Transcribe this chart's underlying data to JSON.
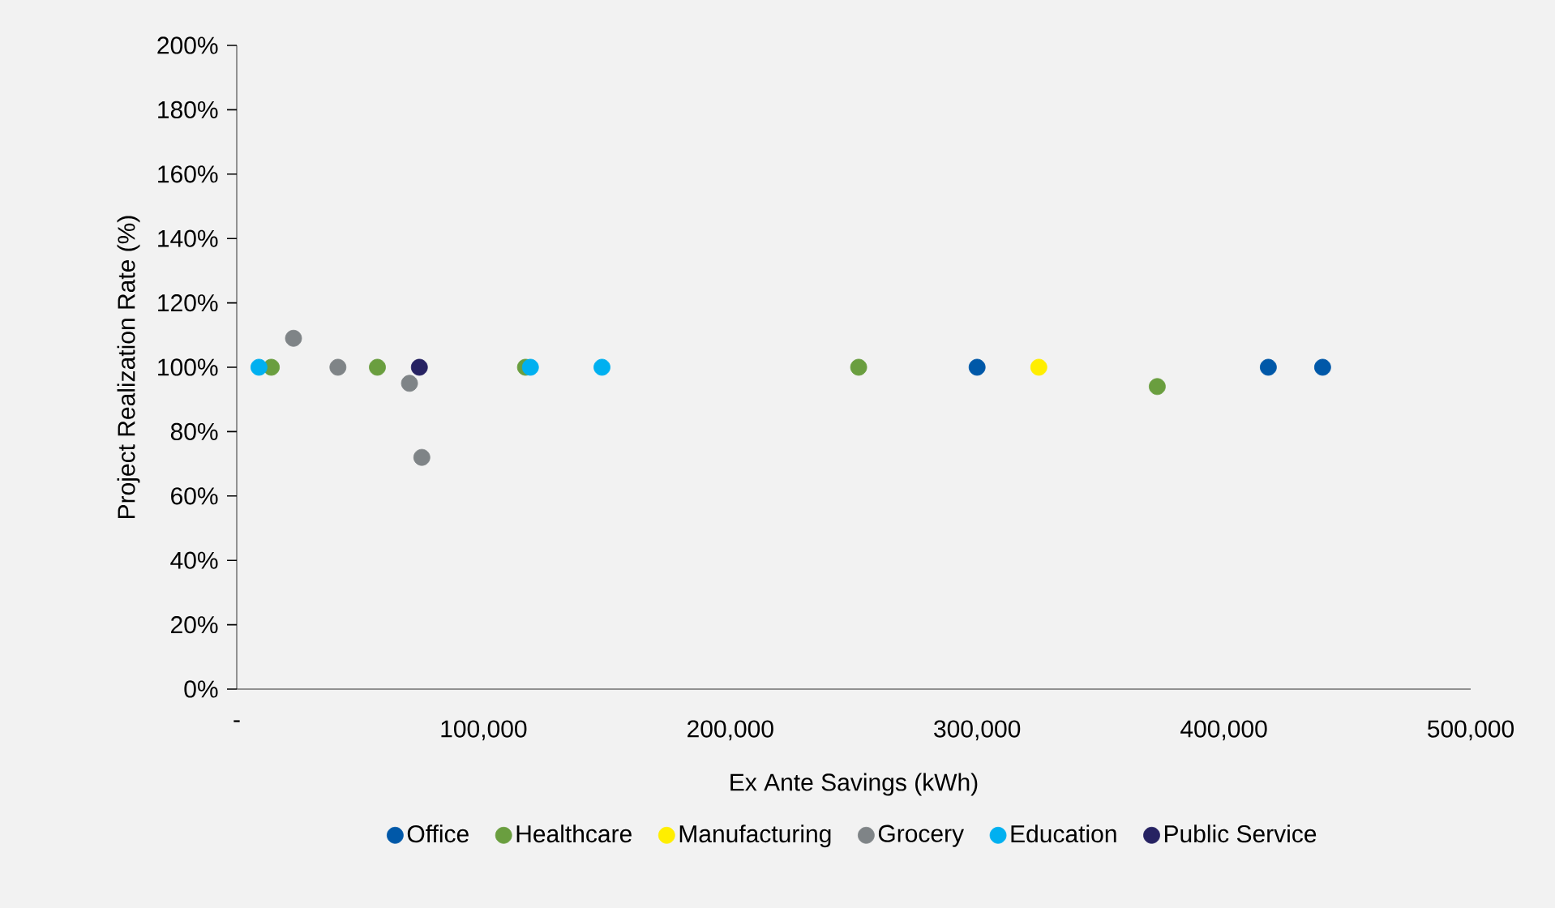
{
  "chart_data": {
    "type": "scatter",
    "xlabel": "Ex Ante Savings (kWh)",
    "ylabel": "Project Realization Rate (%)",
    "xlim": [
      0,
      500000
    ],
    "ylim": [
      0,
      200
    ],
    "xticks": [
      {
        "value": 0,
        "label": "-"
      },
      {
        "value": 100000,
        "label": "100,000"
      },
      {
        "value": 200000,
        "label": "200,000"
      },
      {
        "value": 300000,
        "label": "300,000"
      },
      {
        "value": 400000,
        "label": "400,000"
      },
      {
        "value": 500000,
        "label": "500,000"
      }
    ],
    "yticks": [
      {
        "value": 0,
        "label": "0%"
      },
      {
        "value": 20,
        "label": "20%"
      },
      {
        "value": 40,
        "label": "40%"
      },
      {
        "value": 60,
        "label": "60%"
      },
      {
        "value": 80,
        "label": "80%"
      },
      {
        "value": 100,
        "label": "100%"
      },
      {
        "value": 120,
        "label": "120%"
      },
      {
        "value": 140,
        "label": "140%"
      },
      {
        "value": 160,
        "label": "160%"
      },
      {
        "value": 180,
        "label": "180%"
      },
      {
        "value": 200,
        "label": "200%"
      }
    ],
    "grid": false,
    "legend": "bottom",
    "marker": "circle",
    "series": [
      {
        "name": "Office",
        "color": "#0058a8",
        "x": [
          300000,
          418000,
          440000
        ],
        "values": [
          100,
          100,
          100
        ]
      },
      {
        "name": "Healthcare",
        "color": "#6a9e3f",
        "x": [
          14000,
          57000,
          117000,
          252000,
          373000
        ],
        "values": [
          100,
          100,
          100,
          100,
          94
        ]
      },
      {
        "name": "Manufacturing",
        "color": "#ffee00",
        "x": [
          325000
        ],
        "values": [
          100
        ]
      },
      {
        "name": "Grocery",
        "color": "#7f8487",
        "x": [
          23000,
          41000,
          70000,
          75000
        ],
        "values": [
          109,
          100,
          95,
          72
        ]
      },
      {
        "name": "Education",
        "color": "#00b0f0",
        "x": [
          9000,
          119000,
          148000
        ],
        "values": [
          100,
          100,
          100
        ]
      },
      {
        "name": "Public Service",
        "color": "#262262",
        "x": [
          74000
        ],
        "values": [
          100
        ]
      }
    ]
  }
}
